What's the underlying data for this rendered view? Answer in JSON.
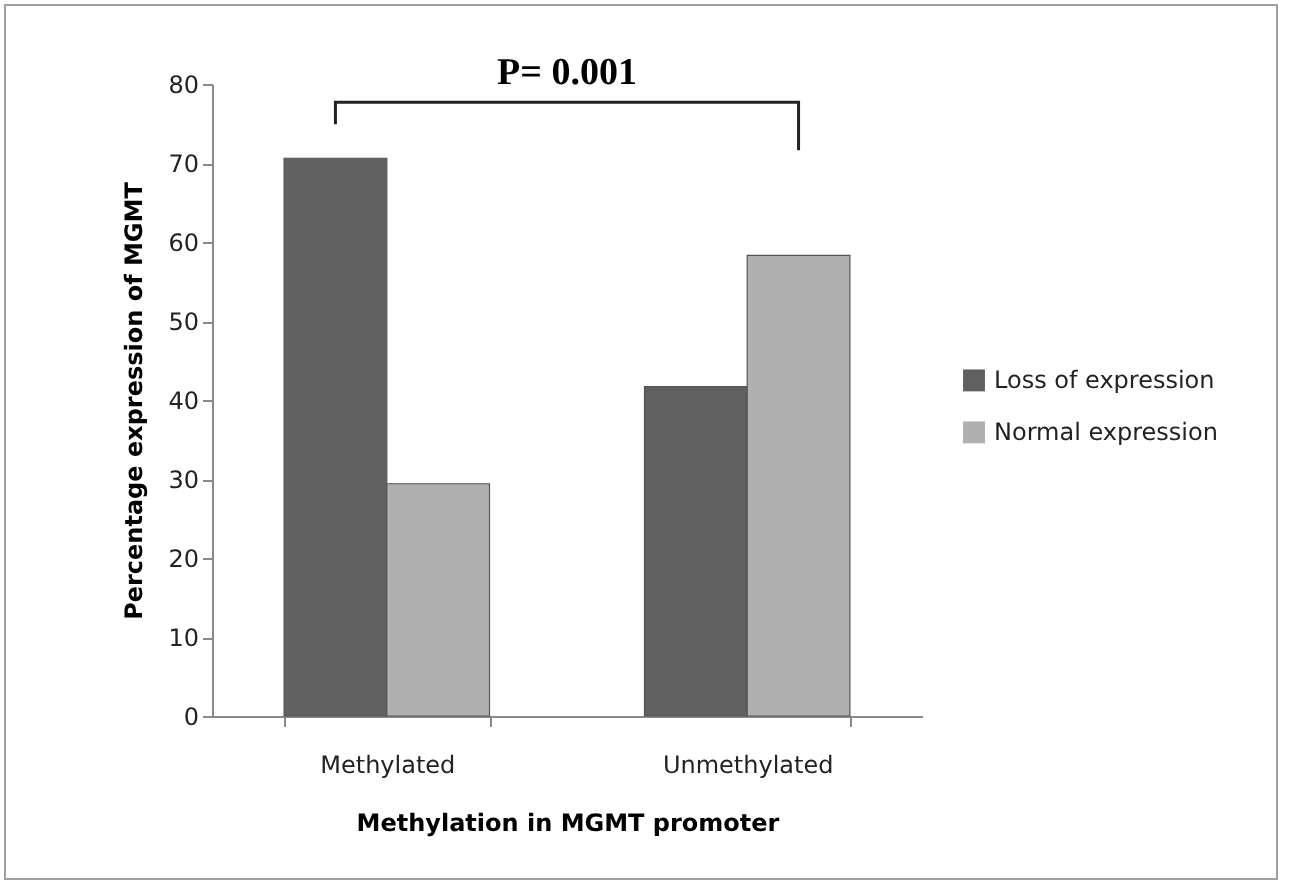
{
  "chart_data": {
    "type": "bar",
    "xlabel": "Methylation in MGMT promoter",
    "ylabel": "Percentage expression of MGMT",
    "categories": [
      "Methylated",
      "Unmethylated"
    ],
    "series": [
      {
        "name": "Loss of expression",
        "color": "#606060",
        "values": [
          70.6,
          41.7
        ]
      },
      {
        "name": "Normal expression",
        "color": "#b0b0b0",
        "values": [
          29.4,
          58.3
        ]
      }
    ],
    "ylim": [
      0,
      80
    ],
    "yticks": [
      0,
      10,
      20,
      30,
      40,
      50,
      60,
      70,
      80
    ],
    "grid": false,
    "legend": "right",
    "annotations": [
      "P= 0.001"
    ]
  }
}
